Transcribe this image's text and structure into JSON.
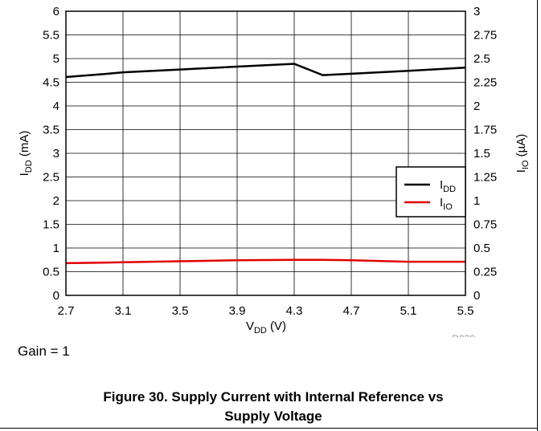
{
  "chart_data": {
    "type": "line",
    "x": [
      2.7,
      2.95,
      3.1,
      3.5,
      3.9,
      4.3,
      4.5,
      4.7,
      5.1,
      5.5
    ],
    "series": [
      {
        "name": "IDD",
        "name_base": "I",
        "name_sub": "DD",
        "axis": "left",
        "color": "#000000",
        "values": [
          4.61,
          4.67,
          4.71,
          4.77,
          4.83,
          4.89,
          4.65,
          4.68,
          4.74,
          4.81
        ]
      },
      {
        "name": "IIO",
        "name_base": "I",
        "name_sub": "IO",
        "axis": "right",
        "color": "#e00000",
        "values": [
          0.34,
          0.345,
          0.35,
          0.36,
          0.37,
          0.375,
          0.375,
          0.37,
          0.355,
          0.355
        ]
      }
    ],
    "xlim": [
      2.7,
      5.5
    ],
    "ylim_left": [
      0,
      6
    ],
    "ylim_right": [
      0,
      3
    ],
    "x_ticks": [
      "2.7",
      "3.1",
      "3.5",
      "3.9",
      "4.3",
      "4.7",
      "5.1",
      "5.5"
    ],
    "y_left_ticks": [
      "0",
      "0.5",
      "1",
      "1.5",
      "2",
      "2.5",
      "3",
      "3.5",
      "4",
      "4.5",
      "5",
      "5.5",
      "6"
    ],
    "y_right_ticks": [
      "0",
      "0.25",
      "0.5",
      "0.75",
      "1",
      "1.25",
      "1.5",
      "1.75",
      "2",
      "2.25",
      "2.5",
      "2.75",
      "3"
    ],
    "xlabel": {
      "base": "V",
      "sub": "DD",
      "unit": " (V)"
    },
    "ylabel_left": {
      "base": "I",
      "sub": "DD",
      "unit": " (mA)"
    },
    "ylabel_right": {
      "base": "I",
      "sub": "IO",
      "unit": " (µA)"
    },
    "grid": true,
    "legend_position": "right",
    "watermark": "D030"
  },
  "note": "Gain = 1",
  "caption": {
    "line1": "Figure 30. Supply Current with Internal Reference vs",
    "line2": "Supply Voltage"
  }
}
